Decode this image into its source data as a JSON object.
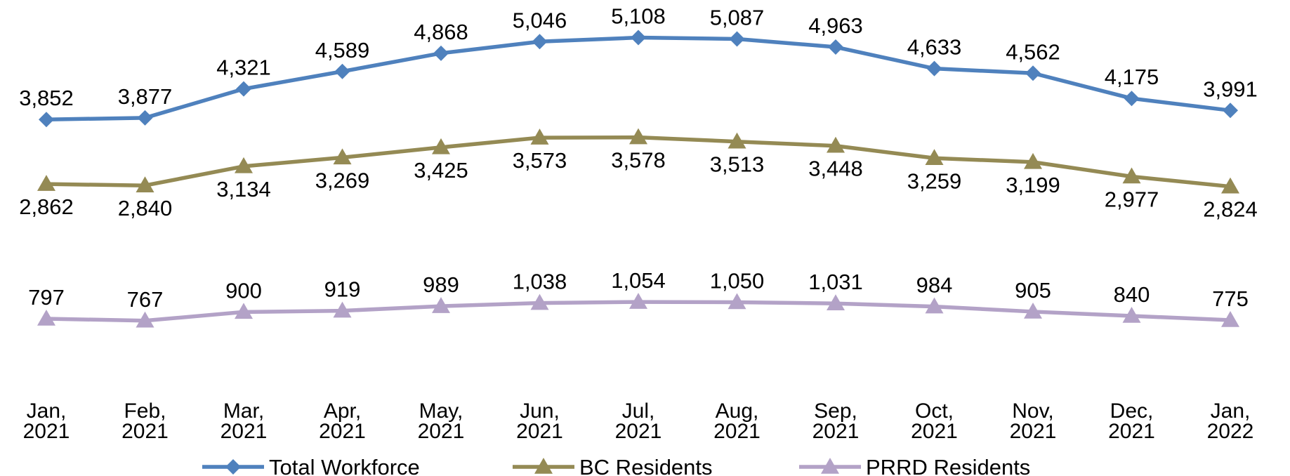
{
  "chart_data": {
    "type": "line",
    "title": "",
    "xlabel": "",
    "ylabel": "",
    "categories": [
      [
        "Jan,",
        "2021"
      ],
      [
        "Feb,",
        "2021"
      ],
      [
        "Mar,",
        "2021"
      ],
      [
        "Apr,",
        "2021"
      ],
      [
        "May,",
        "2021"
      ],
      [
        "Jun,",
        "2021"
      ],
      [
        "Jul,",
        "2021"
      ],
      [
        "Aug,",
        "2021"
      ],
      [
        "Sep,",
        "2021"
      ],
      [
        "Oct,",
        "2021"
      ],
      [
        "Nov,",
        "2021"
      ],
      [
        "Dec,",
        "2021"
      ],
      [
        "Jan,",
        "2022"
      ]
    ],
    "ylim": [
      0,
      5200
    ],
    "grid": false,
    "legend_position": "bottom",
    "series": [
      {
        "name": "Total Workforce",
        "color": "#4F81BD",
        "marker": "diamond",
        "label_position": "above",
        "values": [
          3852,
          3877,
          4321,
          4589,
          4868,
          5046,
          5108,
          5087,
          4963,
          4633,
          4562,
          4175,
          3991
        ],
        "labels": [
          "3,852",
          "3,877",
          "4,321",
          "4,589",
          "4,868",
          "5,046",
          "5,108",
          "5,087",
          "4,963",
          "4,633",
          "4,562",
          "4,175",
          "3,991"
        ]
      },
      {
        "name": "BC Residents",
        "color": "#948A54",
        "marker": "triangle",
        "label_position": "below",
        "values": [
          2862,
          2840,
          3134,
          3269,
          3425,
          3573,
          3578,
          3513,
          3448,
          3259,
          3199,
          2977,
          2824
        ],
        "labels": [
          "2,862",
          "2,840",
          "3,134",
          "3,269",
          "3,425",
          "3,573",
          "3,578",
          "3,513",
          "3,448",
          "3,259",
          "3,199",
          "2,977",
          "2,824"
        ]
      },
      {
        "name": "PRRD Residents",
        "color": "#B3A2C7",
        "marker": "triangle",
        "label_position": "above",
        "values": [
          797,
          767,
          900,
          919,
          989,
          1038,
          1054,
          1050,
          1031,
          984,
          905,
          840,
          775
        ],
        "labels": [
          "797",
          "767",
          "900",
          "919",
          "989",
          "1,038",
          "1,054",
          "1,050",
          "1,031",
          "984",
          "905",
          "840",
          "775"
        ]
      }
    ]
  }
}
